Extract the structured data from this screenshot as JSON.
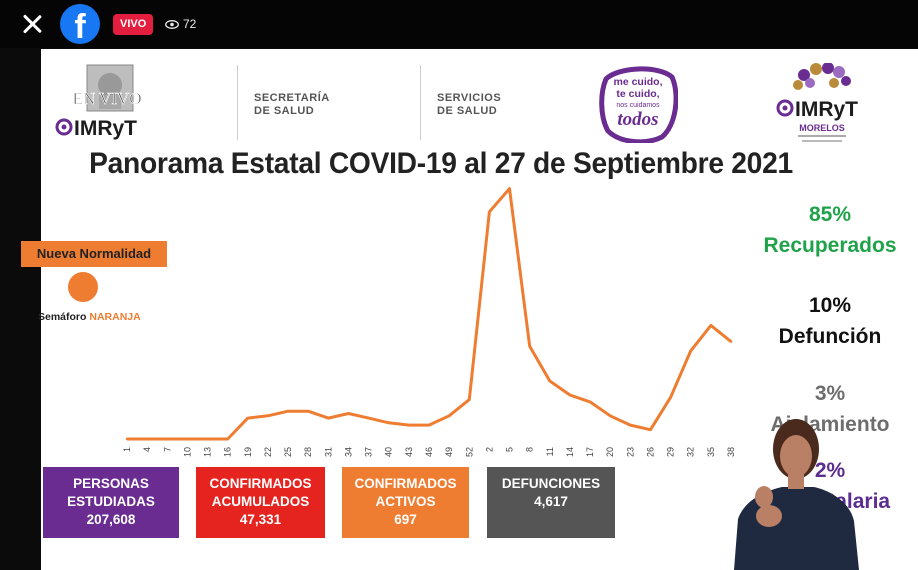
{
  "topbar": {
    "live_label": "VIVO",
    "viewer_count": "72",
    "fb_glyph": "f",
    "icons": [
      "close-icon",
      "facebook-icon",
      "eye-icon"
    ]
  },
  "logos": {
    "envivo": "EN VIVO",
    "imryt": "IMRyT",
    "secretaria_line1": "SECRETARÍA",
    "secretaria_line2": "DE SALUD",
    "servicios_line1": "SERVICIOS",
    "servicios_line2": "DE SALUD",
    "todos_line1": "me cuido,",
    "todos_line2": "te cuido,",
    "todos_line3": "nos cuidamos",
    "todos_line4": "todos",
    "morelos": "MORELOS"
  },
  "slide": {
    "title": "Panorama Estatal COVID-19 al 27 de Septiembre 2021",
    "nueva_normalidad": "Nueva Normalidad",
    "semaforo_label": "Semáforo",
    "semaforo_color": "NARANJA",
    "accent": "#ee7d31"
  },
  "stats": [
    {
      "value": "85%",
      "label": "Recuperados",
      "color": "#1fa24a"
    },
    {
      "value": "10%",
      "label": "Defunción",
      "color": "#111111"
    },
    {
      "value": "3%",
      "label": "Aislamiento",
      "color": "#6d6d6d"
    },
    {
      "value": "2%",
      "label": "Hospitalaria",
      "color": "#5b2d8e"
    }
  ],
  "boxes": [
    {
      "label_line1": "PERSONAS",
      "label_line2": "ESTUDIADAS",
      "value": "207,608",
      "color": "#6a2c91"
    },
    {
      "label_line1": "CONFIRMADOS",
      "label_line2": "ACUMULADOS",
      "value": "47,331",
      "color": "#e52420"
    },
    {
      "label_line1": "CONFIRMADOS",
      "label_line2": "ACTIVOS",
      "value": "697",
      "color": "#ee7d31"
    },
    {
      "label_line1": "DEFUNCIONES",
      "label_line2": "",
      "value": "4,617",
      "color": "#555555"
    }
  ],
  "chart_data": {
    "type": "line",
    "x": [
      "1",
      "4",
      "7",
      "10",
      "13",
      "16",
      "19",
      "22",
      "25",
      "28",
      "31",
      "34",
      "37",
      "40",
      "43",
      "46",
      "49",
      "52",
      "2",
      "5",
      "8",
      "11",
      "14",
      "17",
      "20",
      "23",
      "26",
      "29",
      "32",
      "35",
      "38"
    ],
    "series": [
      {
        "values": [
          0,
          0,
          0,
          0,
          0,
          0,
          9,
          10,
          12,
          12,
          9,
          11,
          9,
          7,
          6,
          6,
          10,
          17,
          98,
          108,
          40,
          25,
          19,
          16,
          10,
          6,
          4,
          18,
          38,
          49,
          42
        ]
      }
    ],
    "ylim": [
      0,
      110
    ],
    "color": "#ee7d31"
  }
}
